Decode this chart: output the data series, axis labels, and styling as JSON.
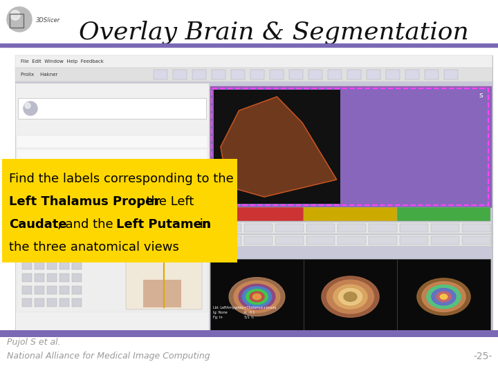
{
  "title": "Overlay Brain & Segmentation",
  "title_fontsize": 26,
  "title_style": "italic",
  "title_font": "serif",
  "bg_color": "#ffffff",
  "purple_bar_color": "#7B68B5",
  "yellow_box_color": "#FFD700",
  "text_line1": "Find the labels corresponding to the",
  "text_line2a_bold": "Left Thalamus Proper",
  "text_line2b": ", the Left",
  "text_line3a_bold": "Caudate",
  "text_line3b": ", and the ",
  "text_line3c_bold": "Left Putamen",
  "text_line3d": " in",
  "text_line4": "the three anatomical views",
  "text_fontsize": 13,
  "text_color": "#000000",
  "footer_line1": "Pujol S et al.",
  "footer_line2": "National Alliance for Medical Image Computing",
  "footer_right": "-25-",
  "footer_fontsize": 9,
  "footer_color": "#999999",
  "ss_bg": "#c8c8d8",
  "toolbar1_bg": "#f0f0f0",
  "toolbar2_bg": "#e8e8e8",
  "left_panel_bg": "#f5f5f5",
  "right_3d_bg": "#8877cc",
  "black_view_bg": "#101010",
  "red_bar": "#cc3333",
  "yellow_bar": "#ddaa00",
  "green_bar": "#44aa44"
}
